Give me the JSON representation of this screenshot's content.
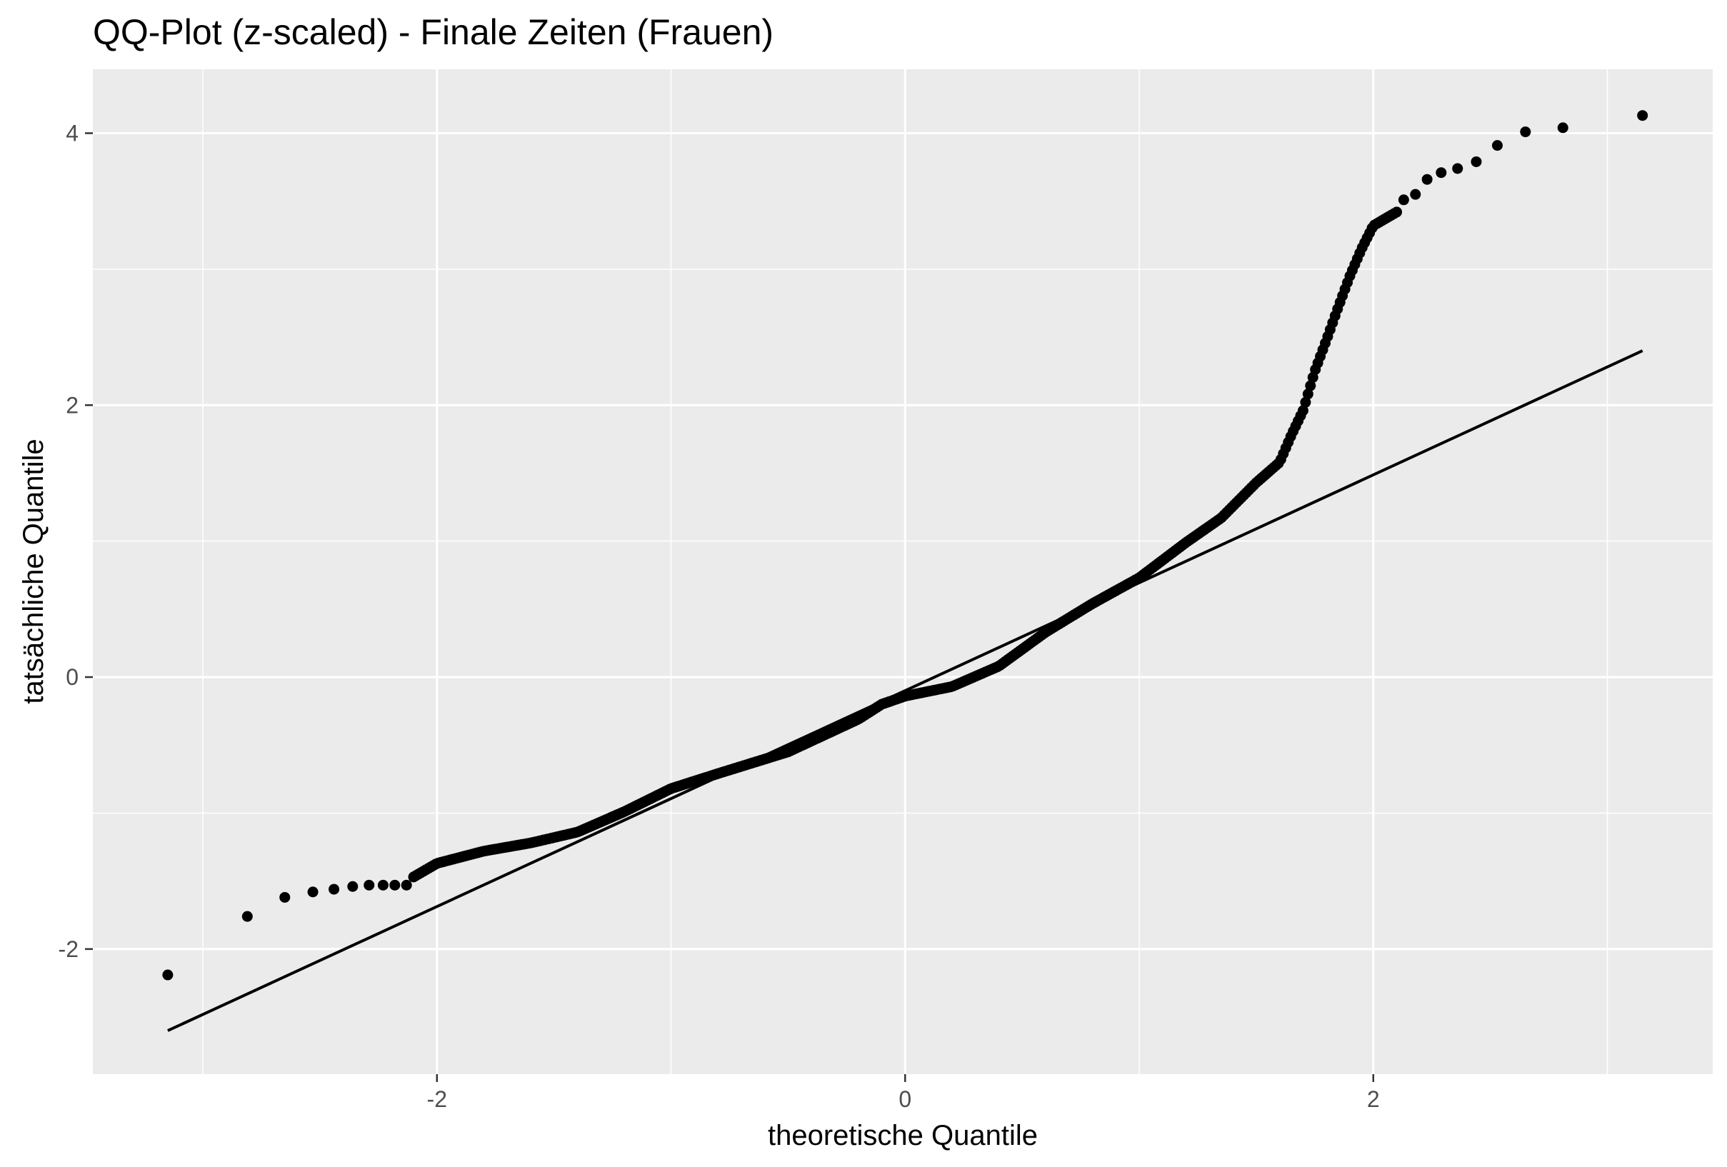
{
  "chart_data": {
    "type": "scatter",
    "title": "QQ-Plot (z-scaled) - Finale Zeiten (Frauen)",
    "xlabel": "theoretische Quantile",
    "ylabel": "tatsächliche Quantile",
    "xlim": [
      -3.47,
      3.45
    ],
    "ylim": [
      -2.92,
      4.47
    ],
    "x_ticks": [
      -2,
      0,
      2
    ],
    "x_tick_labels": [
      "-2",
      "0",
      "2"
    ],
    "y_ticks": [
      -2,
      0,
      2,
      4
    ],
    "y_tick_labels": [
      "-2",
      "0",
      "2",
      "4"
    ],
    "grid": true,
    "legend": "none",
    "colors": {
      "panel_background": "#ebebeb",
      "grid_major": "#ffffff",
      "points": "#000000",
      "reference_line": "#000000"
    },
    "reference_line": {
      "x": [
        -3.15,
        3.15
      ],
      "y": [
        -2.6,
        2.4
      ]
    },
    "outer_points": {
      "x": [
        -3.15,
        -2.81,
        -2.65,
        -2.53,
        -2.44,
        -2.36,
        -2.29,
        -2.23,
        -2.18,
        -2.13,
        2.13,
        2.18,
        2.23,
        2.29,
        2.36,
        2.44,
        2.53,
        2.65,
        2.81,
        3.15
      ],
      "y": [
        -2.19,
        -1.76,
        -1.62,
        -1.58,
        -1.56,
        -1.54,
        -1.53,
        -1.53,
        -1.53,
        -1.53,
        3.51,
        3.55,
        3.66,
        3.71,
        3.74,
        3.79,
        3.91,
        4.01,
        4.04,
        4.13
      ]
    },
    "dense_points": {
      "n": 400,
      "x_range": [
        -2.1,
        2.1
      ],
      "profile": {
        "x": [
          -2.1,
          -2.0,
          -1.8,
          -1.6,
          -1.4,
          -1.2,
          -1.0,
          -0.8,
          -0.5,
          -0.2,
          -0.1,
          0.0,
          0.2,
          0.4,
          0.6,
          0.8,
          1.0,
          1.1,
          1.2,
          1.35,
          1.5,
          1.6,
          1.65,
          1.7,
          1.75,
          1.8,
          1.85,
          1.9,
          1.95,
          2.0,
          2.1
        ],
        "y": [
          -1.47,
          -1.37,
          -1.28,
          -1.22,
          -1.14,
          -0.99,
          -0.82,
          -0.71,
          -0.55,
          -0.31,
          -0.2,
          -0.14,
          -0.07,
          0.08,
          0.33,
          0.54,
          0.73,
          0.86,
          0.99,
          1.17,
          1.43,
          1.58,
          1.78,
          1.96,
          2.25,
          2.48,
          2.72,
          2.95,
          3.15,
          3.32,
          3.42
        ]
      }
    }
  }
}
